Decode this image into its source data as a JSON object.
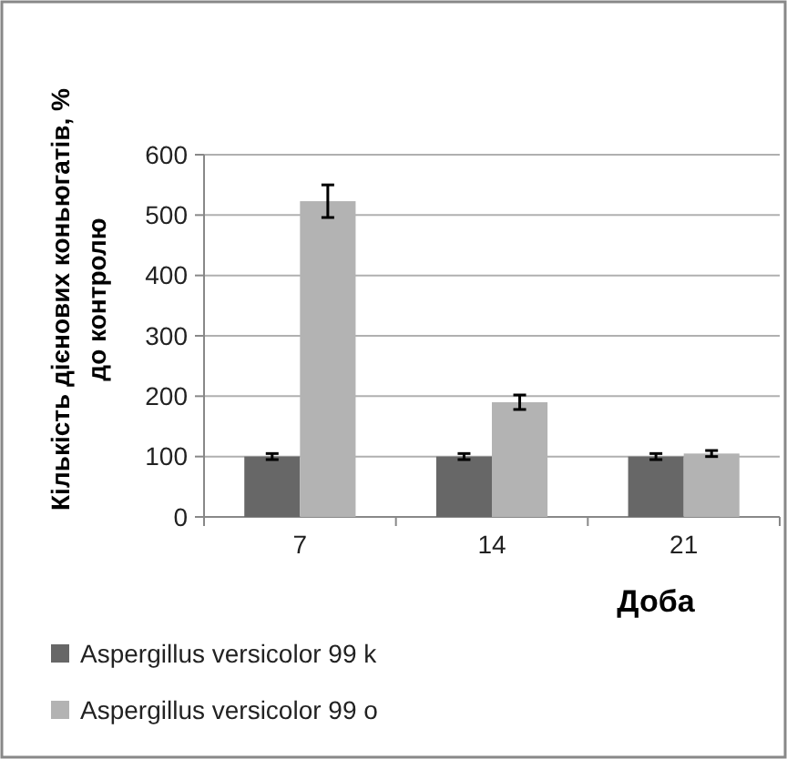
{
  "chart_data": {
    "type": "bar",
    "xlabel": "Доба",
    "ylabel": "Кількість дієнових коньюгатів, % до контролю",
    "categories": [
      "7",
      "14",
      "21"
    ],
    "series": [
      {
        "name": "Aspergillus versicolor 99 k",
        "color": "#676767",
        "values": [
          100,
          100,
          100
        ],
        "errors": [
          5,
          5,
          5
        ]
      },
      {
        "name": "Aspergillus versicolor 99 o",
        "color": "#b3b3b3",
        "values": [
          523,
          190,
          105
        ],
        "errors": [
          27,
          12,
          5
        ]
      }
    ],
    "ylim": [
      0,
      600
    ],
    "yticks": [
      0,
      100,
      200,
      300,
      400,
      500,
      600
    ],
    "grid": "y",
    "legend": "bottom"
  }
}
